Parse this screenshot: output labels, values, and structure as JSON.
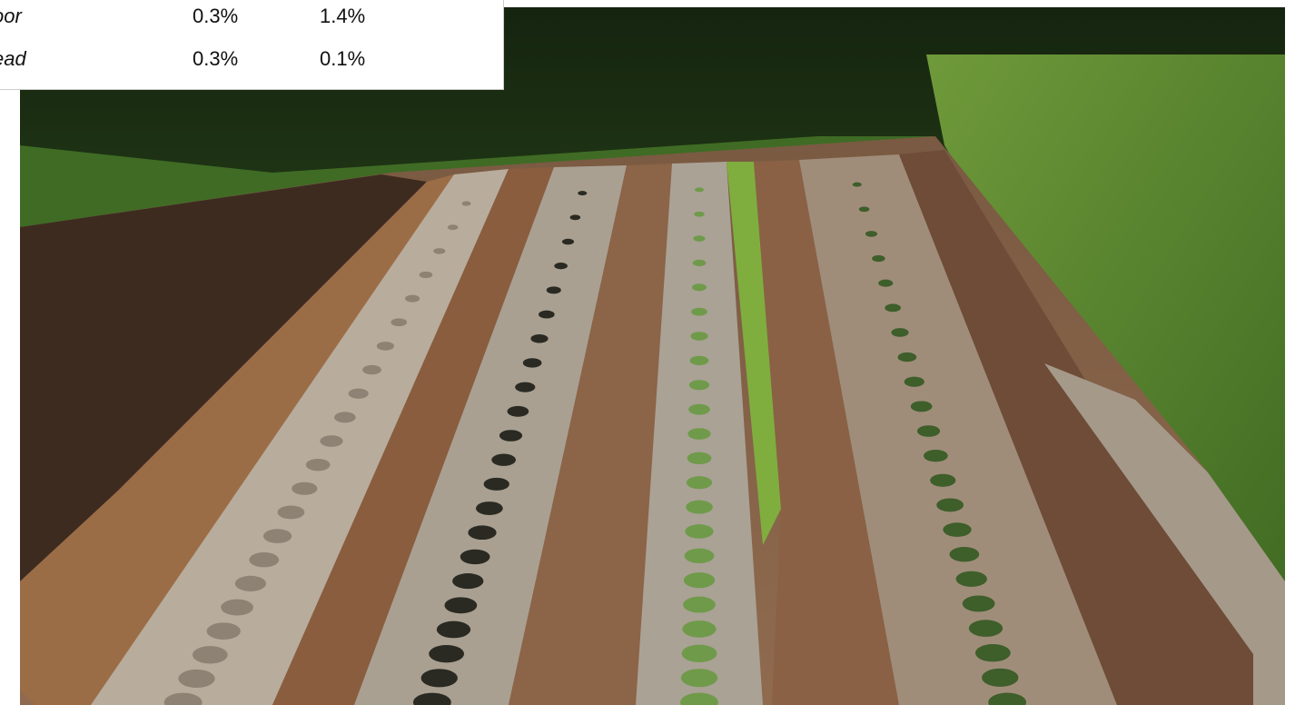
{
  "table": {
    "rows": [
      [
        "oor",
        "0.3%",
        "1.4%"
      ],
      [
        "ead",
        "0.3%",
        "0.1%"
      ]
    ]
  }
}
